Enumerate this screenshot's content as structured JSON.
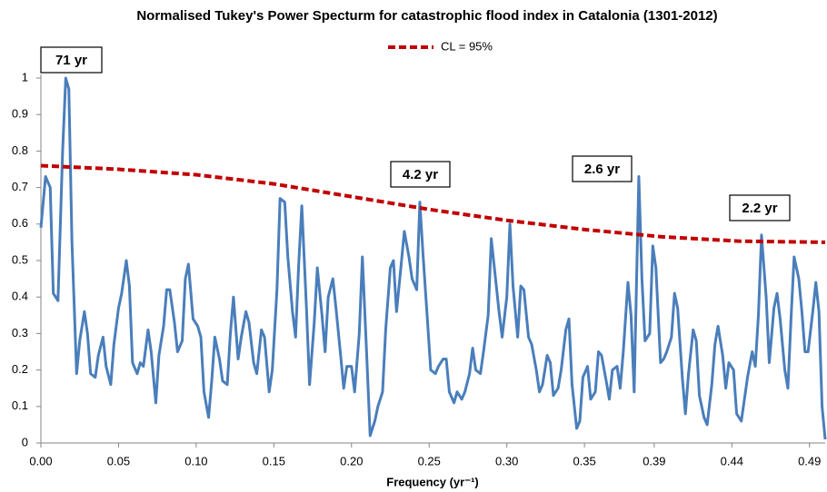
{
  "chart_data": {
    "type": "line",
    "title": "Normalised Tukey's Power Specturm for catastrophic flood index in Catalonia (1301-2012)",
    "x_label": "Frequency (yr⁻¹)",
    "xlim": [
      0,
      0.505
    ],
    "ylim": [
      0,
      1
    ],
    "xticks": [
      {
        "value": 0,
        "label": "0.00"
      },
      0.05,
      {
        "value": 0.1,
        "label": "0.10"
      },
      0.15,
      {
        "value": 0.2,
        "label": "0.20"
      },
      0.25,
      {
        "value": 0.3,
        "label": "0.30"
      },
      0.35,
      {
        "value": 0.3949,
        "label": "0.39"
      },
      {
        "value": 0.4449,
        "label": "0.44"
      },
      {
        "value": 0.4949,
        "label": "0.49"
      }
    ],
    "yticks": [
      0,
      0.1,
      0.2,
      0.3,
      0.4,
      0.5,
      0.6,
      0.7,
      0.8,
      0.9,
      1
    ],
    "grid": false,
    "legend": "top",
    "annotations": [
      "71 yr",
      "4.2 yr",
      "2.6 yr",
      "2.2 yr"
    ],
    "series": [
      {
        "color": "#4a7ebb",
        "dashed": false,
        "x": [
          0,
          0.003,
          0.006,
          0.008,
          0.011,
          0.014,
          0.016,
          0.018,
          0.02,
          0.023,
          0.025,
          0.028,
          0.03,
          0.032,
          0.035,
          0.037,
          0.04,
          0.042,
          0.045,
          0.047,
          0.05,
          0.052,
          0.055,
          0.057,
          0.059,
          0.062,
          0.064,
          0.066,
          0.069,
          0.071,
          0.074,
          0.076,
          0.079,
          0.081,
          0.083,
          0.086,
          0.088,
          0.091,
          0.093,
          0.095,
          0.098,
          0.101,
          0.103,
          0.105,
          0.108,
          0.11,
          0.112,
          0.115,
          0.117,
          0.12,
          0.122,
          0.124,
          0.127,
          0.129,
          0.132,
          0.134,
          0.137,
          0.139,
          0.142,
          0.144,
          0.147,
          0.149,
          0.152,
          0.154,
          0.157,
          0.159,
          0.162,
          0.164,
          0.166,
          0.168,
          0.171,
          0.173,
          0.176,
          0.178,
          0.181,
          0.183,
          0.185,
          0.188,
          0.19,
          0.193,
          0.195,
          0.197,
          0.2,
          0.202,
          0.205,
          0.207,
          0.21,
          0.212,
          0.215,
          0.217,
          0.22,
          0.222,
          0.225,
          0.227,
          0.229,
          0.232,
          0.234,
          0.237,
          0.239,
          0.242,
          0.244,
          0.246,
          0.249,
          0.251,
          0.254,
          0.256,
          0.259,
          0.261,
          0.263,
          0.266,
          0.268,
          0.271,
          0.273,
          0.276,
          0.278,
          0.28,
          0.283,
          0.285,
          0.288,
          0.29,
          0.292,
          0.295,
          0.297,
          0.3,
          0.302,
          0.304,
          0.307,
          0.309,
          0.311,
          0.314,
          0.316,
          0.319,
          0.321,
          0.323,
          0.326,
          0.328,
          0.33,
          0.333,
          0.335,
          0.338,
          0.34,
          0.342,
          0.345,
          0.347,
          0.349,
          0.352,
          0.354,
          0.357,
          0.359,
          0.361,
          0.364,
          0.366,
          0.368,
          0.371,
          0.373,
          0.375,
          0.378,
          0.38,
          0.382,
          0.385,
          0.387,
          0.389,
          0.392,
          0.394,
          0.396,
          0.399,
          0.401,
          0.403,
          0.406,
          0.408,
          0.41,
          0.413,
          0.415,
          0.417,
          0.42,
          0.422,
          0.424,
          0.427,
          0.429,
          0.432,
          0.434,
          0.436,
          0.439,
          0.441,
          0.443,
          0.446,
          0.448,
          0.451,
          0.453,
          0.455,
          0.458,
          0.46,
          0.462,
          0.464,
          0.467,
          0.469,
          0.472,
          0.474,
          0.476,
          0.479,
          0.481,
          0.483,
          0.485,
          0.488,
          0.49,
          0.492,
          0.494,
          0.497,
          0.499,
          0.501,
          0.503,
          0.505
        ],
        "values": [
          0.59,
          0.73,
          0.7,
          0.41,
          0.39,
          0.8,
          1,
          0.97,
          0.55,
          0.19,
          0.28,
          0.36,
          0.3,
          0.19,
          0.18,
          0.24,
          0.29,
          0.21,
          0.16,
          0.27,
          0.37,
          0.41,
          0.5,
          0.43,
          0.22,
          0.19,
          0.22,
          0.21,
          0.31,
          0.25,
          0.11,
          0.24,
          0.32,
          0.42,
          0.42,
          0.33,
          0.25,
          0.28,
          0.45,
          0.49,
          0.34,
          0.32,
          0.29,
          0.14,
          0.07,
          0.17,
          0.29,
          0.23,
          0.17,
          0.16,
          0.3,
          0.4,
          0.23,
          0.29,
          0.36,
          0.33,
          0.22,
          0.19,
          0.31,
          0.29,
          0.14,
          0.2,
          0.42,
          0.67,
          0.66,
          0.51,
          0.36,
          0.29,
          0.49,
          0.65,
          0.37,
          0.16,
          0.33,
          0.48,
          0.35,
          0.25,
          0.4,
          0.45,
          0.37,
          0.24,
          0.15,
          0.21,
          0.21,
          0.14,
          0.3,
          0.51,
          0.22,
          0.02,
          0.06,
          0.1,
          0.14,
          0.31,
          0.48,
          0.5,
          0.36,
          0.49,
          0.58,
          0.51,
          0.45,
          0.42,
          0.66,
          0.52,
          0.33,
          0.2,
          0.19,
          0.21,
          0.23,
          0.23,
          0.14,
          0.11,
          0.14,
          0.12,
          0.14,
          0.19,
          0.26,
          0.2,
          0.19,
          0.25,
          0.35,
          0.56,
          0.48,
          0.36,
          0.29,
          0.4,
          0.6,
          0.43,
          0.29,
          0.43,
          0.42,
          0.29,
          0.27,
          0.2,
          0.14,
          0.16,
          0.24,
          0.22,
          0.13,
          0.15,
          0.2,
          0.31,
          0.34,
          0.16,
          0.04,
          0.06,
          0.18,
          0.21,
          0.12,
          0.14,
          0.25,
          0.24,
          0.17,
          0.12,
          0.2,
          0.21,
          0.15,
          0.25,
          0.44,
          0.35,
          0.14,
          0.73,
          0.45,
          0.28,
          0.3,
          0.54,
          0.48,
          0.22,
          0.23,
          0.25,
          0.29,
          0.41,
          0.37,
          0.18,
          0.08,
          0.19,
          0.31,
          0.28,
          0.13,
          0.07,
          0.05,
          0.16,
          0.27,
          0.32,
          0.24,
          0.15,
          0.22,
          0.2,
          0.08,
          0.06,
          0.12,
          0.18,
          0.25,
          0.21,
          0.35,
          0.57,
          0.4,
          0.22,
          0.37,
          0.41,
          0.34,
          0.2,
          0.15,
          0.34,
          0.51,
          0.45,
          0.36,
          0.25,
          0.25,
          0.36,
          0.44,
          0.36,
          0.1,
          0.01
        ]
      },
      {
        "name": "CL = 95%",
        "color": "#c00000",
        "dashed": true,
        "x": [
          0,
          0.05,
          0.1,
          0.15,
          0.2,
          0.25,
          0.3,
          0.35,
          0.4,
          0.45,
          0.505
        ],
        "values": [
          0.76,
          0.75,
          0.735,
          0.71,
          0.675,
          0.64,
          0.61,
          0.585,
          0.565,
          0.553,
          0.55
        ]
      }
    ]
  }
}
